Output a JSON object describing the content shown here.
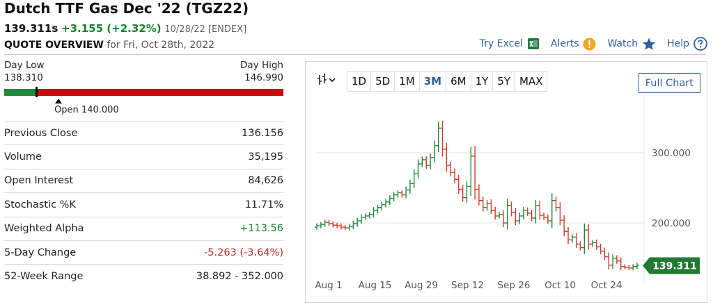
{
  "header": {
    "title": "Dutch TTF Gas Dec '22 (TGZ22)",
    "last": "139.311s",
    "change": "+3.155 (+2.32%)",
    "meta": "10/28/22 [ENDEX]",
    "overview_label": "QUOTE OVERVIEW",
    "overview_date": "for Fri, Oct 28th, 2022"
  },
  "toolbar": {
    "excel": "Try Excel",
    "alerts": "Alerts",
    "watch": "Watch",
    "help": "Help",
    "icons": [
      "excel-icon",
      "alert-icon",
      "star-icon",
      "help-icon"
    ]
  },
  "day_range": {
    "low_label": "Day Low",
    "high_label": "Day High",
    "low": "138.310",
    "high": "146.990",
    "open_label": "Open 140.000",
    "low_value": 138.31,
    "high_value": 146.99,
    "last_value": 139.311,
    "open_value": 140.0
  },
  "stats": [
    {
      "label": "Previous Close",
      "value": "136.156",
      "tone": ""
    },
    {
      "label": "Volume",
      "value": "35,195",
      "tone": ""
    },
    {
      "label": "Open Interest",
      "value": "84,626",
      "tone": ""
    },
    {
      "label": "Stochastic %K",
      "value": "11.71%",
      "tone": ""
    },
    {
      "label": "Weighted Alpha",
      "value": "+113.56",
      "tone": "pos"
    },
    {
      "label": "5-Day Change",
      "value": "-5.263 (-3.64%)",
      "tone": "neg"
    },
    {
      "label": "52-Week Range",
      "value": "38.892 - 352.000",
      "tone": ""
    }
  ],
  "chart": {
    "periods": [
      "1D",
      "5D",
      "1M",
      "3M",
      "6M",
      "1Y",
      "5Y",
      "MAX"
    ],
    "active_period": "3M",
    "full_chart": "Full Chart",
    "type_icon": "candlestick-chart-icon"
  },
  "chart_data": {
    "type": "ohlc",
    "x_ticks": [
      "Aug 1",
      "Aug 15",
      "Aug 29",
      "Sep 12",
      "Sep 26",
      "Oct 10",
      "Oct 24"
    ],
    "y_ticks": [
      "300.000",
      "200.000"
    ],
    "y_tick_values": [
      300,
      200
    ],
    "ylim": [
      120,
      370
    ],
    "last_label": "139.311",
    "last_value": 139.311,
    "up_color": "#1f8a3a",
    "down_color": "#d13b2b",
    "grid": true,
    "closes": [
      196,
      198,
      201,
      199,
      197,
      196,
      194,
      193,
      195,
      199,
      203,
      208,
      210,
      212,
      218,
      222,
      226,
      230,
      235,
      240,
      243,
      240,
      247,
      256,
      270,
      284,
      290,
      282,
      293,
      310,
      335,
      305,
      282,
      272,
      262,
      248,
      236,
      252,
      295,
      248,
      232,
      222,
      228,
      218,
      210,
      212,
      200,
      225,
      215,
      203,
      210,
      218,
      214,
      207,
      225,
      211,
      208,
      203,
      232,
      222,
      204,
      188,
      176,
      180,
      170,
      165,
      190,
      170,
      172,
      166,
      160,
      152,
      140,
      150,
      146,
      138,
      137,
      136,
      138,
      140
    ]
  }
}
